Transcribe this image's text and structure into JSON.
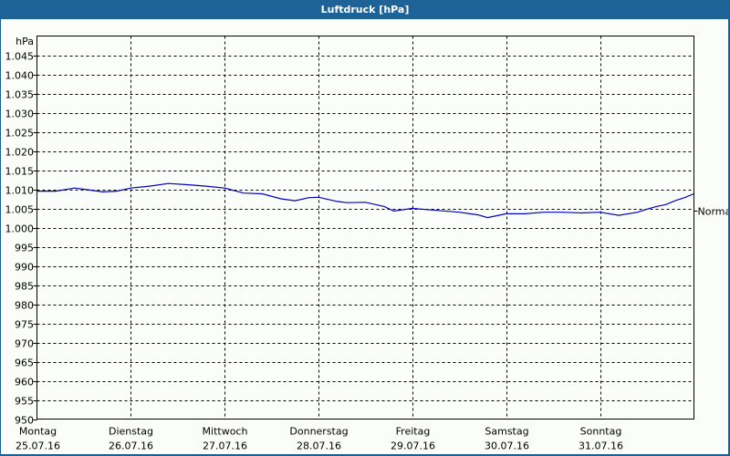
{
  "window": {
    "title": "Luftdruck [hPa]"
  },
  "colors": {
    "titlebar": "#1e6398",
    "background": "#fbfdfb",
    "series": "#0000c0",
    "grid": "#000000"
  },
  "chart_data": {
    "type": "line",
    "title": "Luftdruck [hPa]",
    "xlabel": "",
    "ylabel": "hPa",
    "ylim": [
      950,
      1050
    ],
    "yticks": [
      950,
      955,
      960,
      965,
      970,
      975,
      980,
      985,
      990,
      995,
      1000,
      1005,
      1010,
      1015,
      1020,
      1025,
      1030,
      1035,
      1040,
      1045
    ],
    "ytick_labels": [
      "950",
      "955",
      "960",
      "965",
      "970",
      "975",
      "980",
      "985",
      "990",
      "995",
      "1.000",
      "1.005",
      "1.010",
      "1.015",
      "1.020",
      "1.025",
      "1.030",
      "1.035",
      "1.040",
      "1.045"
    ],
    "y_unit_label": "hPa",
    "categories": [
      {
        "day": "Montag",
        "date": "25.07.16"
      },
      {
        "day": "Dienstag",
        "date": "26.07.16"
      },
      {
        "day": "Mittwoch",
        "date": "27.07.16"
      },
      {
        "day": "Donnerstag",
        "date": "28.07.16"
      },
      {
        "day": "Freitag",
        "date": "29.07.16"
      },
      {
        "day": "Samstag",
        "date": "30.07.16"
      },
      {
        "day": "Sonntag",
        "date": "31.07.16"
      }
    ],
    "grid": true,
    "reference_line": {
      "label": "Normal",
      "value": 1004.5
    },
    "series": [
      {
        "name": "Luftdruck",
        "x_days": [
          0.0,
          0.2,
          0.4,
          0.5,
          0.7,
          0.85,
          1.0,
          1.2,
          1.4,
          1.6,
          1.8,
          2.0,
          2.2,
          2.4,
          2.6,
          2.75,
          2.9,
          3.0,
          3.2,
          3.3,
          3.5,
          3.7,
          3.8,
          4.0,
          4.2,
          4.5,
          4.7,
          4.8,
          5.0,
          5.2,
          5.4,
          5.6,
          5.8,
          6.0,
          6.2,
          6.4,
          6.5,
          6.6,
          6.7,
          6.8,
          6.9,
          7.0
        ],
        "values": [
          1009.5,
          1009.5,
          1010.3,
          1010.0,
          1009.3,
          1009.5,
          1010.3,
          1010.8,
          1011.5,
          1011.2,
          1010.8,
          1010.3,
          1009.0,
          1008.8,
          1007.5,
          1007.0,
          1007.8,
          1007.9,
          1006.8,
          1006.5,
          1006.6,
          1005.5,
          1004.3,
          1005.0,
          1004.6,
          1004.0,
          1003.3,
          1002.6,
          1003.6,
          1003.6,
          1004.0,
          1004.0,
          1003.8,
          1004.0,
          1003.2,
          1004.0,
          1004.8,
          1005.5,
          1006.0,
          1007.0,
          1007.8,
          1008.8
        ]
      }
    ]
  }
}
